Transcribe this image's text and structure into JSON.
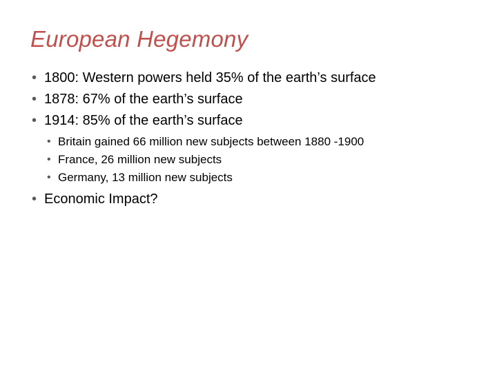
{
  "slide": {
    "title": "European Hegemony",
    "title_color": "#c0504d",
    "title_fontsize": 33,
    "title_italic": true,
    "bullet_color": "#595959",
    "text_color": "#000000",
    "background_color": "#ffffff",
    "level1_fontsize": 20,
    "level2_fontsize": 17,
    "bullets_level1": [
      "1800: Western powers held 35% of the earth’s surface",
      "1878: 67% of the earth’s surface",
      "1914: 85% of the earth’s surface"
    ],
    "bullets_level2": [
      "Britain gained 66 million new subjects between 1880 -1900",
      "France, 26 million new subjects",
      "Germany, 13 million new subjects"
    ],
    "bullets_level1_after": [
      "Economic Impact?"
    ]
  }
}
